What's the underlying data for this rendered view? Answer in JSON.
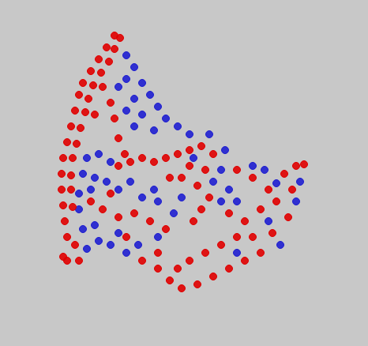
{
  "chart_data": {
    "type": "scatter",
    "tick_labels": false,
    "grid": false,
    "series": [
      {
        "color": "#1f1fd0",
        "marker": "circle",
        "x": [
          160,
          170,
          160,
          180,
          150,
          190,
          170,
          200,
          160,
          180,
          210,
          225,
          170,
          195,
          240,
          110,
          125,
          140,
          105,
          120,
          135,
          150,
          100,
          115,
          100,
          120,
          105,
          125,
          140,
          110,
          160,
          175,
          150,
          180,
          200,
          195,
          165,
          245,
          265,
          285,
          280,
          270,
          290,
          300,
          280,
          230,
          220,
          320,
          335,
          350,
          380,
          375,
          340,
          355,
          300,
          200
        ],
        "y": [
          368,
          353,
          338,
          333,
          328,
          318,
          313,
          303,
          298,
          293,
          288,
          278,
          278,
          273,
          268,
          238,
          243,
          233,
          218,
          213,
          208,
          198,
          193,
          198,
          173,
          153,
          148,
          133,
          128,
          123,
          118,
          128,
          143,
          188,
          183,
          198,
          208,
          238,
          268,
          248,
          223,
          208,
          198,
          183,
          183,
          188,
          168,
          228,
          223,
          206,
          208,
          183,
          158,
          128,
          118,
          138
        ]
      },
      {
        "color": "#e00000",
        "marker": "circle",
        "x": [
          145,
          152,
          135,
          145,
          125,
          138,
          115,
          128,
          105,
          118,
          130,
          100,
          112,
          95,
          108,
          120,
          90,
          102,
          85,
          97,
          80,
          92,
          78,
          90,
          78,
          90,
          80,
          92,
          82,
          85,
          95,
          80,
          100,
          140,
          145,
          150,
          158,
          150,
          165,
          180,
          195,
          210,
          225,
          240,
          255,
          270,
          240,
          260,
          230,
          250,
          265,
          255,
          245,
          215,
          115,
          130,
          150,
          170,
          190,
          210,
          160,
          140,
          300,
          320,
          340,
          360,
          375,
          385,
          370,
          350,
          330,
          310,
          290,
          320,
          345,
          365,
          300,
          330,
          180,
          200,
          215,
          230,
          250,
          270,
          290,
          310,
          200,
          240,
          260,
          280,
          225,
          85
        ],
        "y": [
          393,
          390,
          378,
          376,
          363,
          360,
          348,
          346,
          333,
          330,
          328,
          318,
          313,
          298,
          296,
          293,
          278,
          276,
          258,
          256,
          238,
          238,
          218,
          216,
          198,
          198,
          178,
          176,
          158,
          138,
          128,
          113,
          108,
          308,
          288,
          263,
          243,
          228,
          233,
          238,
          233,
          238,
          243,
          248,
          253,
          243,
          228,
          223,
          213,
          203,
          188,
          173,
          158,
          213,
          183,
          173,
          163,
          168,
          158,
          148,
          138,
          193,
          223,
          213,
          198,
          218,
          228,
          230,
          198,
          183,
          173,
          158,
          168,
          138,
          143,
          163,
          138,
          118,
          108,
          98,
          83,
          73,
          78,
          88,
          98,
          108,
          118,
          108,
          118,
          128,
          98,
          108
        ]
      }
    ]
  }
}
